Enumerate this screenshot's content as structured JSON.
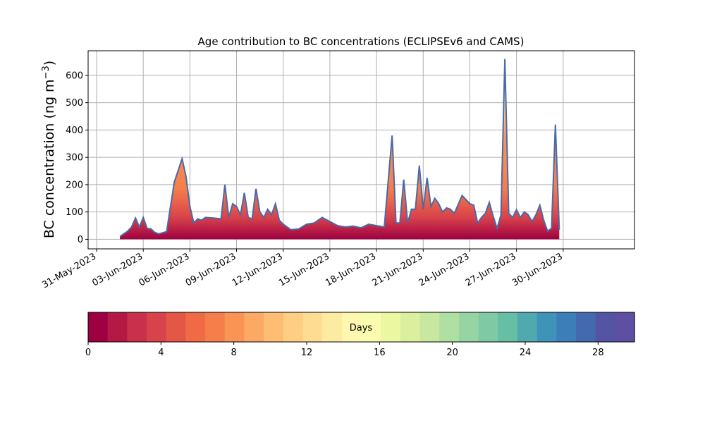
{
  "chart_data": {
    "type": "area",
    "title": "Age contribution to BC concentrations (ECLIPSEv6 and CAMS)",
    "xlabel": "",
    "ylabel": "BC concentration (ng m⁻³)",
    "ylabel_main": "BC concentration (ng m",
    "ylabel_sup": "−3",
    "ylabel_close": ")",
    "xlim": [
      "2023-05-31",
      "2023-07-03"
    ],
    "ylim": [
      -35,
      690
    ],
    "grid": true,
    "x_tick_labels": [
      "31-May-2023",
      "03-Jun-2023",
      "06-Jun-2023",
      "09-Jun-2023",
      "12-Jun-2023",
      "15-Jun-2023",
      "18-Jun-2023",
      "21-Jun-2023",
      "24-Jun-2023",
      "27-Jun-2023",
      "30-Jun-2023"
    ],
    "x_tick_dates": [
      "2023-05-31",
      "2023-06-03",
      "2023-06-06",
      "2023-06-09",
      "2023-06-12",
      "2023-06-15",
      "2023-06-18",
      "2023-06-21",
      "2023-06-24",
      "2023-06-27",
      "2023-06-30"
    ],
    "y_ticks": [
      0,
      100,
      200,
      300,
      400,
      500,
      600
    ],
    "series": [
      {
        "x": [
          "2023-06-01T12:00",
          "2023-06-02T00:00",
          "2023-06-02T06:00",
          "2023-06-02T12:00",
          "2023-06-02T18:00",
          "2023-06-03T00:00",
          "2023-06-03T06:00",
          "2023-06-03T12:00",
          "2023-06-03T18:00",
          "2023-06-04T00:00",
          "2023-06-04T12:00",
          "2023-06-05T00:00",
          "2023-06-05T12:00",
          "2023-06-05T18:00",
          "2023-06-06T00:00",
          "2023-06-06T06:00",
          "2023-06-06T12:00",
          "2023-06-06T18:00",
          "2023-06-07T00:00",
          "2023-06-07T12:00",
          "2023-06-08T00:00",
          "2023-06-08T06:00",
          "2023-06-08T12:00",
          "2023-06-08T18:00",
          "2023-06-09T00:00",
          "2023-06-09T06:00",
          "2023-06-09T12:00",
          "2023-06-09T18:00",
          "2023-06-10T00:00",
          "2023-06-10T06:00",
          "2023-06-10T12:00",
          "2023-06-10T18:00",
          "2023-06-11T00:00",
          "2023-06-11T06:00",
          "2023-06-11T12:00",
          "2023-06-11T18:00",
          "2023-06-12T00:00",
          "2023-06-12T06:00",
          "2023-06-12T12:00",
          "2023-06-13T00:00",
          "2023-06-13T12:00",
          "2023-06-14T00:00",
          "2023-06-14T12:00",
          "2023-06-15T00:00",
          "2023-06-15T12:00",
          "2023-06-16T00:00",
          "2023-06-16T12:00",
          "2023-06-17T00:00",
          "2023-06-17T12:00",
          "2023-06-18T00:00",
          "2023-06-18T12:00",
          "2023-06-19T00:00",
          "2023-06-19T06:00",
          "2023-06-19T12:00",
          "2023-06-19T18:00",
          "2023-06-20T00:00",
          "2023-06-20T06:00",
          "2023-06-20T12:00",
          "2023-06-20T18:00",
          "2023-06-21T00:00",
          "2023-06-21T06:00",
          "2023-06-21T12:00",
          "2023-06-21T18:00",
          "2023-06-22T00:00",
          "2023-06-22T06:00",
          "2023-06-22T12:00",
          "2023-06-22T18:00",
          "2023-06-23T00:00",
          "2023-06-23T12:00",
          "2023-06-24T00:00",
          "2023-06-24T06:00",
          "2023-06-24T12:00",
          "2023-06-24T18:00",
          "2023-06-25T00:00",
          "2023-06-25T06:00",
          "2023-06-25T12:00",
          "2023-06-25T18:00",
          "2023-06-26T00:00",
          "2023-06-26T06:00",
          "2023-06-26T12:00",
          "2023-06-26T18:00",
          "2023-06-27T00:00",
          "2023-06-27T06:00",
          "2023-06-27T12:00",
          "2023-06-27T18:00",
          "2023-06-28T00:00",
          "2023-06-28T06:00",
          "2023-06-28T12:00",
          "2023-06-28T18:00",
          "2023-06-29T00:00",
          "2023-06-29T06:00",
          "2023-06-29T12:00",
          "2023-06-29T18:00",
          "2023-06-30T00:00",
          "2023-06-30T06:00",
          "2023-06-30T12:00",
          "2023-06-30T18:00",
          "2023-07-01T00:00",
          "2023-07-01T06:00"
        ],
        "total": [
          10,
          30,
          45,
          78,
          45,
          80,
          40,
          38,
          25,
          20,
          28,
          210,
          295,
          230,
          120,
          60,
          75,
          70,
          80,
          78,
          75,
          200,
          80,
          130,
          120,
          90,
          170,
          80,
          75,
          185,
          100,
          80,
          110,
          90,
          130,
          70,
          55,
          45,
          35,
          38,
          55,
          60,
          80,
          65,
          50,
          45,
          48,
          42,
          55,
          50,
          45,
          380,
          60,
          60,
          218,
          60,
          110,
          110,
          270,
          110,
          225,
          120,
          150,
          130,
          100,
          115,
          110,
          95,
          160,
          130,
          125,
          60,
          80,
          95,
          135,
          85,
          40,
          90,
          660,
          95,
          80,
          108,
          80,
          100,
          90,
          65,
          90,
          125,
          70,
          30,
          40,
          420,
          35,
          0,
          0,
          0,
          0,
          0,
          0
        ],
        "young_fraction_note": "",
        "total_line_color": "#4a6aa8"
      }
    ],
    "colorbar": {
      "label": "Days",
      "range": [
        0,
        30
      ],
      "ticks": [
        0,
        4,
        8,
        12,
        16,
        20,
        24,
        28
      ],
      "colors": [
        "#9e0142",
        "#b41946",
        "#c8304b",
        "#d8424b",
        "#e45747",
        "#ef6a45",
        "#f57e4b",
        "#f99455",
        "#fca964",
        "#fdbd72",
        "#fece82",
        "#fedd93",
        "#feeba2",
        "#fff6b0",
        "#f9fbae",
        "#ecf7a2",
        "#dbf09e",
        "#c7e89e",
        "#b0dfa2",
        "#97d4a4",
        "#7fcaa4",
        "#66bea5",
        "#50a9af",
        "#3f93b8",
        "#3c7eb8",
        "#4569af",
        "#5454a4",
        "#5e4fa2"
      ]
    }
  }
}
